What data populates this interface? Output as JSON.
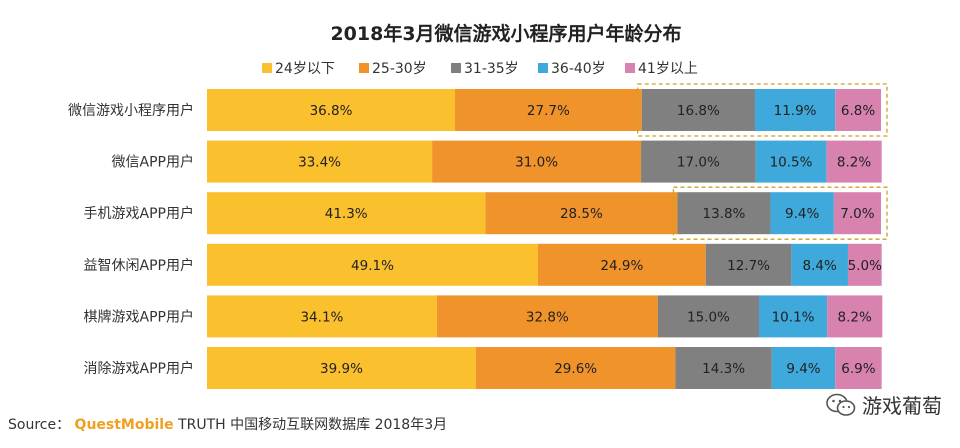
{
  "chart_data": {
    "type": "bar",
    "orientation": "horizontal",
    "stacked": true,
    "percent": true,
    "title": "2018年3月微信游戏小程序用户年龄分布",
    "categories": [
      "微信游戏小程序用户",
      "微信APP用户",
      "手机游戏APP用户",
      "益智休闲APP用户",
      "棋牌游戏APP用户",
      "消除游戏APP用户"
    ],
    "series": [
      {
        "name": "24岁以下",
        "color": "#fbc02d",
        "values": [
          36.8,
          33.4,
          41.3,
          49.1,
          34.1,
          39.9
        ]
      },
      {
        "name": "25-30岁",
        "color": "#f0932b",
        "values": [
          27.7,
          31.0,
          28.5,
          24.9,
          32.8,
          29.6
        ]
      },
      {
        "name": "31-35岁",
        "color": "#808080",
        "values": [
          16.8,
          17.0,
          13.8,
          12.7,
          15.0,
          14.3
        ]
      },
      {
        "name": "36-40岁",
        "color": "#3fa9dc",
        "values": [
          11.9,
          10.5,
          9.4,
          8.4,
          10.1,
          9.4
        ]
      },
      {
        "name": "41岁以上",
        "color": "#d882b0",
        "values": [
          6.8,
          8.2,
          7.0,
          5.0,
          8.2,
          6.9
        ]
      }
    ],
    "labels": [
      [
        "36.8%",
        "27.7%",
        "16.8%",
        "11.9%",
        "6.8%"
      ],
      [
        "33.4%",
        "31.0%",
        "17.0%",
        "10.5%",
        "8.2%"
      ],
      [
        "41.3%",
        "28.5%",
        "13.8%",
        "9.4%",
        "7.0%"
      ],
      [
        "49.1%",
        "24.9%",
        "12.7%",
        "8.4%",
        "5.0%"
      ],
      [
        "34.1%",
        "32.8%",
        "15.0%",
        "10.1%",
        "8.2%"
      ],
      [
        "39.9%",
        "29.6%",
        "14.3%",
        "9.4%",
        "6.9%"
      ]
    ],
    "legend_position": "top",
    "xlim": [
      0,
      100
    ],
    "highlight_rows": [
      0,
      2
    ],
    "highlight_color": "#c9a227"
  },
  "source": {
    "prefix": "Source：",
    "brand": "QuestMobile",
    "text": "TRUTH 中国移动互联网数据库 2018年3月"
  },
  "watermark": {
    "text": "游戏葡萄",
    "icon": "wechat-icon"
  }
}
